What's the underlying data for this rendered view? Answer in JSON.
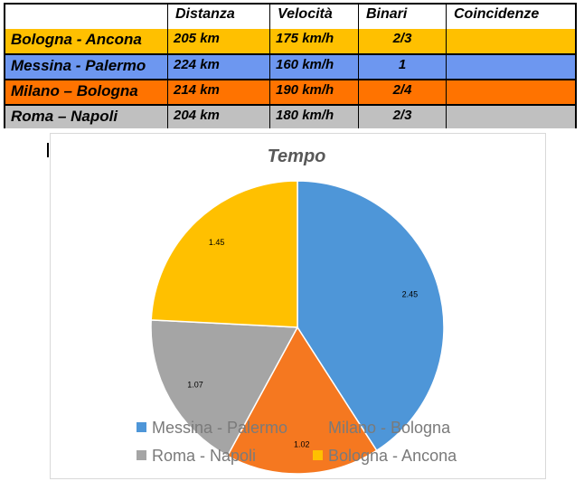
{
  "table": {
    "headers": [
      "",
      "Distanza",
      "Velocità",
      "Binari",
      "Coincidenze"
    ],
    "rows": [
      {
        "name": "Bologna - Ancona",
        "distanza": "205 km",
        "velocita": "175 km/h",
        "binari": "2/3",
        "coincidenze": "",
        "color": "#FFC000"
      },
      {
        "name": "Messina - Palermo",
        "distanza": "224 km",
        "velocita": "160 km/h",
        "binari": "1",
        "coincidenze": "",
        "color": "#6D97F0"
      },
      {
        "name": "Milano – Bologna",
        "distanza": "214 km",
        "velocita": "190 km/h",
        "binari": "2/4",
        "coincidenze": "",
        "color": "#FF7300"
      },
      {
        "name": "Roma – Napoli",
        "distanza": "204 km",
        "velocita": "180 km/h",
        "binari": "2/3",
        "coincidenze": "",
        "color": "#C0C0C0"
      }
    ]
  },
  "chart_data": {
    "type": "pie",
    "title": "Tempo",
    "slices": [
      {
        "name": "Messina - Palermo",
        "value": 2.45,
        "label": "2.45",
        "color": "#4E96D8"
      },
      {
        "name": "Milano - Bologna",
        "value": 1.02,
        "label": "1.02",
        "color": "#F57820"
      },
      {
        "name": "Roma - Napoli",
        "value": 1.07,
        "label": "1.07",
        "color": "#A5A5A5"
      },
      {
        "name": "Bologna - Ancona",
        "value": 1.45,
        "label": "1.45",
        "color": "#FFC000"
      }
    ],
    "legend": [
      {
        "name": "Messina - Palermo",
        "color": "#4E96D8"
      },
      {
        "name": "Milano - Bologna",
        "color": "#F57820"
      },
      {
        "name": "Roma - Napoli",
        "color": "#A5A5A5"
      },
      {
        "name": "Bologna - Ancona",
        "color": "#FFC000"
      }
    ],
    "legend_position": "bottom",
    "start_angle": "12 o'clock",
    "direction": "clockwise"
  }
}
